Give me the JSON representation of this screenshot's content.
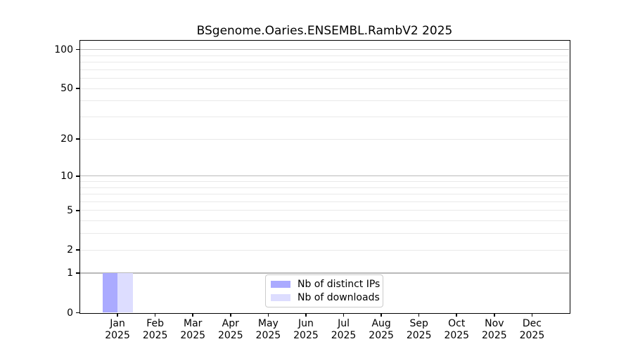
{
  "chart_data": {
    "type": "bar",
    "title": "BSgenome.Oaries.ENSEMBL.RambV2 2025",
    "categories": [
      "Jan 2025",
      "Feb 2025",
      "Mar 2025",
      "Apr 2025",
      "May 2025",
      "Jun 2025",
      "Jul 2025",
      "Aug 2025",
      "Sep 2025",
      "Oct 2025",
      "Nov 2025",
      "Dec 2025"
    ],
    "series": [
      {
        "name": "Nb of distinct IPs",
        "color": "#aaaaff",
        "values": [
          1,
          0,
          0,
          0,
          0,
          0,
          0,
          0,
          0,
          0,
          0,
          0
        ]
      },
      {
        "name": "Nb of downloads",
        "color": "#ddddff",
        "values": [
          1,
          0,
          0,
          0,
          0,
          0,
          0,
          0,
          0,
          0,
          0,
          0
        ]
      }
    ],
    "xlabel": "",
    "ylabel": "",
    "y_axis": {
      "scale": "log1p",
      "ylim": [
        0,
        117
      ],
      "tick_values": [
        0,
        1,
        2,
        5,
        10,
        20,
        50,
        100
      ],
      "major_gridlines": [
        1,
        10,
        100
      ],
      "minor_gridlines": [
        2,
        3,
        4,
        5,
        6,
        7,
        8,
        9,
        20,
        30,
        40,
        50,
        60,
        70,
        80,
        90
      ]
    },
    "grid": true,
    "legend_position": "lower center",
    "background_color": "#ffffff",
    "spine_color": "#000000"
  }
}
